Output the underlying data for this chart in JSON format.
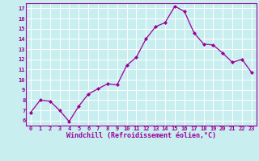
{
  "x": [
    0,
    1,
    2,
    3,
    4,
    5,
    6,
    7,
    8,
    9,
    10,
    11,
    12,
    13,
    14,
    15,
    16,
    17,
    18,
    19,
    20,
    21,
    22,
    23
  ],
  "y": [
    6.8,
    8.0,
    7.9,
    7.0,
    5.9,
    7.4,
    8.6,
    9.1,
    9.6,
    9.5,
    11.4,
    12.2,
    14.0,
    15.2,
    15.6,
    17.2,
    16.7,
    14.6,
    13.5,
    13.4,
    12.6,
    11.7,
    12.0,
    10.7
  ],
  "line_color": "#990099",
  "marker": "D",
  "markersize": 2.0,
  "linewidth": 0.9,
  "xlabel": "Windchill (Refroidissement éolien,°C)",
  "bg_color": "#c8eef0",
  "grid_color": "#aadddd",
  "xlim": [
    -0.5,
    23.5
  ],
  "ylim": [
    5.5,
    17.5
  ],
  "yticks": [
    6,
    7,
    8,
    9,
    10,
    11,
    12,
    13,
    14,
    15,
    16,
    17
  ],
  "xticks": [
    0,
    1,
    2,
    3,
    4,
    5,
    6,
    7,
    8,
    9,
    10,
    11,
    12,
    13,
    14,
    15,
    16,
    17,
    18,
    19,
    20,
    21,
    22,
    23
  ],
  "tick_color": "#990099",
  "tick_fontsize": 5.0,
  "xlabel_fontsize": 6.0
}
